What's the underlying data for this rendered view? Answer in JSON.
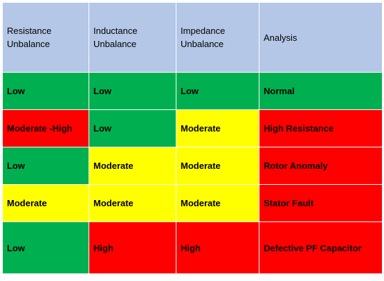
{
  "colors": {
    "header": "#b4c7e7",
    "green": "#00b050",
    "yellow": "#ffff00",
    "red": "#ff0000"
  },
  "table": {
    "headers": [
      "Resistance\nUnbalance",
      "Inductance\nUnbalance",
      "Impedance\nUnbalance",
      "Analysis"
    ],
    "rows": [
      [
        "Low",
        "Low",
        "Low",
        "Normal"
      ],
      [
        "Moderate -High",
        "Low",
        "Moderate",
        "High Resistance"
      ],
      [
        "Low",
        "Moderate",
        "Moderate",
        "Rotor Anomaly"
      ],
      [
        "Moderate",
        "Moderate",
        "Moderate",
        "Stator Fault"
      ],
      [
        "Low",
        "High",
        "High",
        "Defective PF Capacitor"
      ]
    ]
  }
}
